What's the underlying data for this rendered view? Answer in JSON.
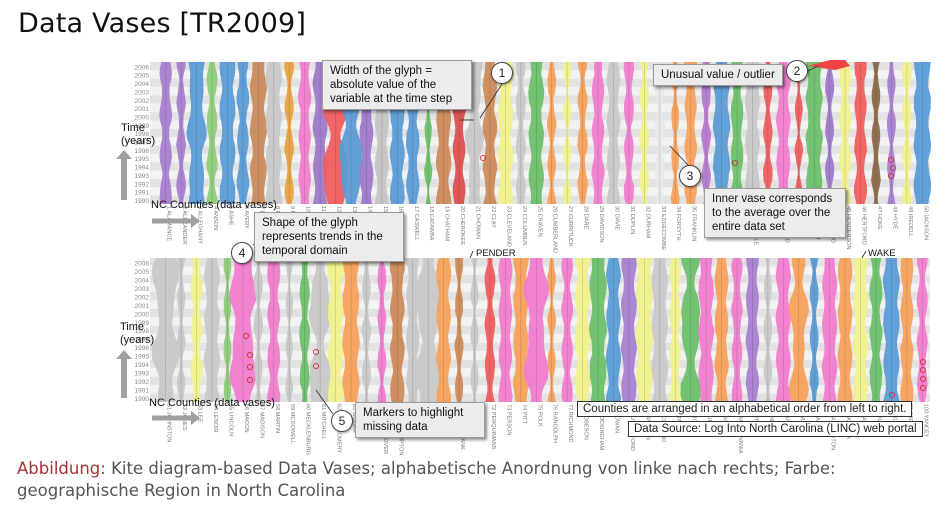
{
  "title": "Data Vases [TR2009]",
  "panels": {
    "time_label": "Time\n(years)",
    "x_label": "NC Counties (data vases)"
  },
  "callouts": {
    "c1_num": "1",
    "c1_text": "Width of the glyph =\nabsolute value of the\nvariable at the time step",
    "c2_num": "2",
    "c2_text": "Unusual value / outlier",
    "c3_num": "3",
    "c3_text": "Inner vase corresponds\nto the average over the\nentire data set",
    "c4_num": "4",
    "c4_text": "Shape of the glyph\nrepresents trends in the\ntemporal domain",
    "c5_num": "5",
    "c5_text": "Markers to highlight\nmissing data"
  },
  "tags": {
    "pender": "PENDER",
    "wake": "WAKE"
  },
  "notes": {
    "order": "Counties are arranged in an alphabetical order from left to right.",
    "source": "Data Source: Log Into North Carolina (LINC) web portal"
  },
  "caption": {
    "lead": "Abbildung",
    "text": ": Kite diagram-based Data Vases; alphabetische Anordnung von linke nach rechts; Farbe: geographische Region in North Carolina"
  },
  "chart_data": {
    "type": "kite-diagram",
    "top_panel": {
      "counties": [
        "1 ALAMANCE",
        "2 ALEXANDER",
        "3 ALLEGHANY",
        "4 ANSON",
        "5 ASHE",
        "6 AVERY",
        "7 BEAUFORT",
        "8 BERTIE",
        "9 BLADEN",
        "10 BRUNSWICK",
        "11 BUNCOMBE",
        "12 BURKE",
        "13 CABARRUS",
        "14 CALDWELL",
        "15 CAMDEN",
        "16 CARTERET",
        "17 CASWELL",
        "18 CATAWBA",
        "19 CHATHAM",
        "20 CHEROKEE",
        "21 CHOWAN",
        "22 CLAY",
        "23 CLEVELAND",
        "24 COLUMBUS",
        "25 CRAVEN",
        "26 CUMBERLAND",
        "27 CURRITUCK",
        "28 DARE",
        "29 DAVIDSON",
        "30 DAVIE",
        "31 DUPLIN",
        "32 DURHAM",
        "33 EDGECOMBE",
        "34 FORSYTH",
        "35 FRANKLIN",
        "36 GASTON",
        "37 GATES",
        "38 GRAHAM",
        "39 GRANVILLE",
        "40 GREENE",
        "41 GUILFORD",
        "42 HALIFAX",
        "43 HARNETT",
        "44 HAYWOOD",
        "45 HENDERSON",
        "46 HERTFORD",
        "47 HOKE",
        "48 HYDE",
        "49 IREDELL",
        "50 JACKSON"
      ],
      "colors": [
        "#a87fd0",
        "#a87fd0",
        "#5b9bd5",
        "#8ecb7a",
        "#5b9bd5",
        "#5b9bd5",
        "#c98a5c",
        "#c8c8c8",
        "#e8a23c",
        "#f07ccd",
        "#9d79c9",
        "#ef5d5d",
        "#5b9bd5",
        "#9d79c9",
        "#c4c4c4",
        "#5b9bd5",
        "#5b9bd5",
        "#6cc06c",
        "#cc8a5a",
        "#dd5050",
        "#c8c8c8",
        "#cc8a5a",
        "#f0f08a",
        "#c8c8c8",
        "#6cc06c",
        "#f5a05a",
        "#f0f08a",
        "#f5a05a",
        "#f07ccd",
        "#c8c8c8",
        "#f07ccd",
        "#f0f08a",
        "#e8e8e8",
        "#f5a05a",
        "#f5a05a",
        "#b67ad0",
        "#5b9bd5",
        "#6cc06c",
        "#c8c8c8",
        "#ef5d5d",
        "#f07ccd",
        "#ef5d5d",
        "#6cc06c",
        "#9d79c9",
        "#f0f08a",
        "#ef5d5d",
        "#8a6a4a",
        "#a87fd0",
        "#f0f08a",
        "#5b9bd5"
      ]
    },
    "bottom_panel": {
      "counties": [
        "51 JOHNSTON",
        "52 JONES",
        "53 LEE",
        "54 LENOIR",
        "55 LINCOLN",
        "56 MACON",
        "57 MADISON",
        "58 MARTIN",
        "59 MCDOWELL",
        "60 MECKLENBURG",
        "61 MITCHELL",
        "62 MONTGOMERY",
        "63 MOORE",
        "64 NASH",
        "65 NEW HANOVER",
        "66 NORTHAMPTON",
        "67 ONSLOW",
        "68 ORANGE",
        "69 PAMLICO",
        "70 PASQUOTANK",
        "71 PENDER",
        "72 PERQUIMANS",
        "73 PERSON",
        "74 PITT",
        "75 POLK",
        "76 RANDOLPH",
        "77 RICHMOND",
        "78 ROBESON",
        "79 ROCKINGHAM",
        "80 ROWAN",
        "81 RUTHERFORD",
        "82 SAMPSON",
        "83 SCOTLAND",
        "84 STANLY",
        "85 STOKES",
        "86 SURRY",
        "87 SWAIN",
        "88 TRANSYLVANIA",
        "89 TYRRELL",
        "90 UNION",
        "91 VANCE",
        "92 WAKE",
        "93 WARREN",
        "94 WASHINGTON",
        "95 WATAUGA",
        "96 WAYNE",
        "97 WILKES",
        "98 WILSON",
        "99 YADKIN",
        "100 YANCEY"
      ],
      "colors": [
        "#c8c8c8",
        "#c8c8c8",
        "#f0f08a",
        "#c8c8c8",
        "#8ecb7a",
        "#f07ccd",
        "#c8c8c8",
        "#f07ccd",
        "#c8c8c8",
        "#6cc06c",
        "#c8c8c8",
        "#f0f08a",
        "#f5a05a",
        "#c8c8c8",
        "#f07ccd",
        "#cc8a5a",
        "#c8c8c8",
        "#c8c8c8",
        "#f5a05a",
        "#cc8a5a",
        "#c8c8c8",
        "#ef5d5d",
        "#f07ccd",
        "#f5a05a",
        "#f07ccd",
        "#f5a05a",
        "#f07ccd",
        "#f0f08a",
        "#6cc06c",
        "#5b9bd5",
        "#a87fd0",
        "#f0f08a",
        "#c8c8c8",
        "#f0f08a",
        "#6cc06c",
        "#f07ccd",
        "#f5a05a",
        "#f07ccd",
        "#a87fd0",
        "#c8c8c8",
        "#f07ccd",
        "#f5a05a",
        "#5b9bd5",
        "#f07ccd",
        "#f5a05a",
        "#f0f08a",
        "#6cc06c",
        "#5b9bd5",
        "#f5a05a",
        "#f07ccd"
      ]
    },
    "years": [
      2006,
      2005,
      2004,
      2003,
      2002,
      2001,
      2000,
      1999,
      1998,
      1997,
      1996,
      1995,
      1994,
      1993,
      1992,
      1991,
      1990
    ]
  }
}
